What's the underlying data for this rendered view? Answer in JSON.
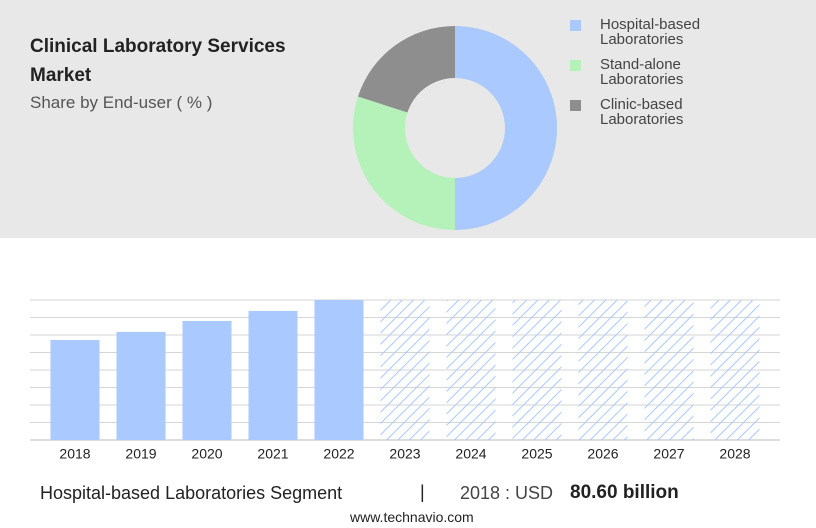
{
  "chart_data": [
    {
      "type": "pie",
      "title": "Clinical Laboratory Services Market",
      "subtitle": "Share by End-user ( % )",
      "categories": [
        "Hospital-based Laboratories",
        "Stand-alone Laboratories",
        "Clinic-based Laboratories"
      ],
      "values": [
        50,
        30,
        20
      ],
      "colors": [
        "#a9c9ff",
        "#b4f2b9",
        "#8e8e8e"
      ],
      "donut": true
    },
    {
      "type": "bar",
      "categories": [
        "2018",
        "2019",
        "2020",
        "2021",
        "2022",
        "2023",
        "2024",
        "2025",
        "2026",
        "2027",
        "2028"
      ],
      "values": [
        80.6,
        87.1,
        95.9,
        104,
        112.8,
        null,
        null,
        null,
        null,
        null,
        null
      ],
      "color": "#a9c9ff",
      "ylim": [
        0,
        112.8
      ],
      "yticks": [
        0,
        14.1,
        28.2,
        42.3,
        56.4,
        70.5,
        84.6,
        98.7,
        112.8
      ],
      "grid": true
    }
  ],
  "footer": {
    "segment": "Hospital-based Laboratories Segment",
    "separator": "|",
    "year_label": "2018 : USD",
    "value": "80.60 billion"
  },
  "source": "www.technavio.com"
}
